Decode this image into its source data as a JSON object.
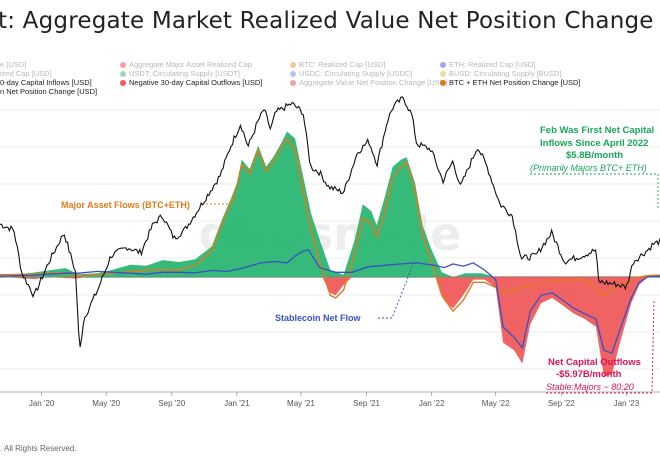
{
  "title": "t: Aggregate Market Realized Value Net Position Change",
  "legend": [
    {
      "label": "e [USD]",
      "color": "#d0d0d0",
      "active": false
    },
    {
      "label": "Aggregate Major Asset Realized Cap",
      "color": "#f3a2a2",
      "active": false
    },
    {
      "label": "BTC: Realized Cap [USD]",
      "color": "#f6c39a",
      "active": false
    },
    {
      "label": "ETH: Realized Cap [USD]",
      "color": "#9fa7e8",
      "active": false
    },
    {
      "label": "ized Cap [USD]",
      "color": "#d0d0d0",
      "active": false
    },
    {
      "label": "USDT: Circulating Supply [USDT]",
      "color": "#9fd7b7",
      "active": false
    },
    {
      "label": "USDC: Circulating Supply [USDC]",
      "color": "#b6c6e6",
      "active": false
    },
    {
      "label": "BUSD: Circulating Supply [BUSD]",
      "color": "#ead9a0",
      "active": false
    },
    {
      "label": "0-day Capital Inflows [USD]",
      "color": "#2bb673",
      "active": true
    },
    {
      "label": "Negative 30-day Capital Outflows [USD]",
      "color": "#f05b5b",
      "active": true
    },
    {
      "label": "Aggregate Value Net Position Change [USD]",
      "color": "#f3a2a2",
      "active": false
    },
    {
      "label": "BTC + ETH Net Position Change [USD]",
      "color": "#e07b1a",
      "active": true
    },
    {
      "label": "n Net Position Change [USD]",
      "color": "#3a4fc7",
      "active": true
    }
  ],
  "annotations": {
    "major_flows": "Major Asset Flows (BTC+ETH)",
    "stablecoin": "Stablecoin Net Flow",
    "inflow_line1": "Feb Was First Net Capital",
    "inflow_line2": "Inflows Since  April 2022",
    "inflow_line3": "$5.8B/month",
    "inflow_line4": "(Primarily Majors BTC+ ETH)",
    "outflow_line1": "Net Capital Outflows",
    "outflow_line2": "-$5.97B/month",
    "outflow_line3": "Stable:Majors ~ 80:20"
  },
  "watermark": "glassnode",
  "footer": ". All Rights Reserved.",
  "colors": {
    "inflow": "#2bb673",
    "outflow": "#f05b5b",
    "majors": "#e07b1a",
    "stable": "#3a4fc7",
    "price": "#111111",
    "inflow_text": "#1aa65a",
    "outflow_text": "#e0105a"
  },
  "chart_data": {
    "type": "area",
    "x_ticks": [
      "Jan '20",
      "May '20",
      "Sep '20",
      "Jan '21",
      "May '21",
      "Sep '21",
      "Jan '22",
      "May '22",
      "Sep '22",
      "Jan '23"
    ],
    "x_range": [
      "2019-10-15",
      "2023-03-05"
    ],
    "net_position_range": [
      -20,
      36
    ],
    "price_range": [
      0,
      100
    ],
    "series": [
      {
        "name": "0-day Capital Inflows [USD]",
        "points": [
          [
            "2019-10-15",
            0
          ],
          [
            "2019-11-20",
            0.6
          ],
          [
            "2019-12-15",
            0.9
          ],
          [
            "2020-01-15",
            1.4
          ],
          [
            "2020-02-15",
            1.9
          ],
          [
            "2020-03-10",
            0.6
          ],
          [
            "2020-04-15",
            0.8
          ],
          [
            "2020-05-15",
            1.6
          ],
          [
            "2020-06-15",
            2.6
          ],
          [
            "2020-07-15",
            2.4
          ],
          [
            "2020-08-15",
            3.6
          ],
          [
            "2020-09-15",
            3.2
          ],
          [
            "2020-10-15",
            3.8
          ],
          [
            "2020-11-15",
            6.5
          ],
          [
            "2020-12-05",
            12.5
          ],
          [
            "2020-12-20",
            16.5
          ],
          [
            "2021-01-01",
            20.0
          ],
          [
            "2021-01-10",
            25.0
          ],
          [
            "2021-01-25",
            23.0
          ],
          [
            "2021-02-10",
            28.0
          ],
          [
            "2021-02-25",
            23.5
          ],
          [
            "2021-03-10",
            25.5
          ],
          [
            "2021-03-25",
            28.5
          ],
          [
            "2021-04-05",
            31.0
          ],
          [
            "2021-04-20",
            29.5
          ],
          [
            "2021-05-05",
            21.5
          ],
          [
            "2021-05-20",
            13.5
          ],
          [
            "2021-06-05",
            8.0
          ],
          [
            "2021-06-25",
            1.5
          ],
          [
            "2021-07-20",
            0.5
          ],
          [
            "2021-08-10",
            8.0
          ],
          [
            "2021-08-25",
            15.5
          ],
          [
            "2021-09-10",
            14.0
          ],
          [
            "2021-09-20",
            11.0
          ],
          [
            "2021-10-05",
            17.0
          ],
          [
            "2021-10-20",
            23.5
          ],
          [
            "2021-11-05",
            25.0
          ],
          [
            "2021-11-15",
            25.5
          ],
          [
            "2021-12-01",
            20.0
          ],
          [
            "2021-12-15",
            11.0
          ],
          [
            "2021-12-31",
            6.0
          ],
          [
            "2022-01-20",
            1.0
          ],
          [
            "2022-02-10",
            0
          ],
          [
            "2022-03-05",
            0.8
          ],
          [
            "2022-04-05",
            0.8
          ],
          [
            "2022-05-01",
            0
          ],
          [
            "2023-01-25",
            0
          ],
          [
            "2023-02-10",
            0.3
          ],
          [
            "2023-03-05",
            0.5
          ]
        ]
      },
      {
        "name": "Negative 30-day Capital Outflows [USD]",
        "points": [
          [
            "2019-10-15",
            0
          ],
          [
            "2019-12-20",
            -0.4
          ],
          [
            "2020-01-10",
            0
          ],
          [
            "2020-03-05",
            -0.3
          ],
          [
            "2020-03-25",
            0
          ],
          [
            "2021-06-10",
            0
          ],
          [
            "2021-06-25",
            -3.0
          ],
          [
            "2021-07-05",
            -3.5
          ],
          [
            "2021-07-20",
            -1.5
          ],
          [
            "2021-08-05",
            0
          ],
          [
            "2022-01-10",
            0
          ],
          [
            "2022-01-25",
            -4.5
          ],
          [
            "2022-02-10",
            -6.0
          ],
          [
            "2022-03-01",
            -3.5
          ],
          [
            "2022-03-20",
            -0.5
          ],
          [
            "2022-04-10",
            -0.5
          ],
          [
            "2022-05-01",
            -2.0
          ],
          [
            "2022-05-15",
            -12.5
          ],
          [
            "2022-06-05",
            -14.0
          ],
          [
            "2022-06-20",
            -16.5
          ],
          [
            "2022-07-05",
            -9.0
          ],
          [
            "2022-07-25",
            -5.0
          ],
          [
            "2022-08-15",
            -4.0
          ],
          [
            "2022-09-05",
            -5.5
          ],
          [
            "2022-09-25",
            -7.0
          ],
          [
            "2022-10-15",
            -8.0
          ],
          [
            "2022-11-05",
            -9.5
          ],
          [
            "2022-11-20",
            -19.0
          ],
          [
            "2022-12-05",
            -18.5
          ],
          [
            "2022-12-20",
            -12.5
          ],
          [
            "2023-01-10",
            -5.0
          ],
          [
            "2023-01-25",
            -1.5
          ],
          [
            "2023-02-10",
            0
          ],
          [
            "2023-03-05",
            0
          ]
        ]
      },
      {
        "name": "BTC + ETH Net Position Change [USD]",
        "points": [
          [
            "2019-10-15",
            0.5
          ],
          [
            "2019-12-15",
            0.6
          ],
          [
            "2020-02-15",
            1.0
          ],
          [
            "2020-03-10",
            0.2
          ],
          [
            "2020-05-15",
            0.8
          ],
          [
            "2020-07-15",
            1.5
          ],
          [
            "2020-09-15",
            1.5
          ],
          [
            "2020-10-15",
            2.5
          ],
          [
            "2020-11-15",
            5.5
          ],
          [
            "2020-12-05",
            11.5
          ],
          [
            "2020-12-20",
            15.5
          ],
          [
            "2021-01-01",
            19.5
          ],
          [
            "2021-01-10",
            24.0
          ],
          [
            "2021-01-25",
            22.0
          ],
          [
            "2021-02-10",
            27.0
          ],
          [
            "2021-02-25",
            22.5
          ],
          [
            "2021-03-10",
            24.5
          ],
          [
            "2021-03-25",
            27.5
          ],
          [
            "2021-04-05",
            29.5
          ],
          [
            "2021-04-20",
            27.0
          ],
          [
            "2021-05-05",
            18.5
          ],
          [
            "2021-05-20",
            10.0
          ],
          [
            "2021-06-05",
            3.0
          ],
          [
            "2021-06-25",
            -3.5
          ],
          [
            "2021-07-05",
            -4.0
          ],
          [
            "2021-07-20",
            -2.5
          ],
          [
            "2021-08-10",
            5.0
          ],
          [
            "2021-08-25",
            12.5
          ],
          [
            "2021-09-10",
            11.5
          ],
          [
            "2021-09-20",
            8.5
          ],
          [
            "2021-10-05",
            13.5
          ],
          [
            "2021-10-20",
            21.0
          ],
          [
            "2021-11-05",
            23.5
          ],
          [
            "2021-11-15",
            24.5
          ],
          [
            "2021-12-01",
            18.5
          ],
          [
            "2021-12-15",
            9.0
          ],
          [
            "2021-12-31",
            3.5
          ],
          [
            "2022-01-20",
            -3.5
          ],
          [
            "2022-02-10",
            -6.5
          ],
          [
            "2022-03-01",
            -4.5
          ],
          [
            "2022-03-20",
            -1.0
          ],
          [
            "2022-04-10",
            -1.0
          ],
          [
            "2022-05-01",
            -2.0
          ],
          [
            "2022-05-15",
            -3.0
          ],
          [
            "2022-06-20",
            -2.0
          ],
          [
            "2022-08-15",
            -0.8
          ],
          [
            "2022-10-15",
            -0.5
          ],
          [
            "2022-11-20",
            -3.5
          ],
          [
            "2022-12-20",
            -1.5
          ],
          [
            "2023-01-25",
            0
          ],
          [
            "2023-02-10",
            0.3
          ],
          [
            "2023-03-05",
            0.4
          ]
        ]
      },
      {
        "name": "n Net Position Change [USD]",
        "points": [
          [
            "2019-10-15",
            0.2
          ],
          [
            "2019-12-15",
            0.4
          ],
          [
            "2020-02-15",
            0.8
          ],
          [
            "2020-03-10",
            0.8
          ],
          [
            "2020-04-15",
            1.2
          ],
          [
            "2020-05-15",
            1.0
          ],
          [
            "2020-06-15",
            0.8
          ],
          [
            "2020-07-15",
            0.6
          ],
          [
            "2020-08-15",
            1.0
          ],
          [
            "2020-09-15",
            1.0
          ],
          [
            "2020-10-15",
            0.9
          ],
          [
            "2020-11-15",
            1.4
          ],
          [
            "2020-12-15",
            1.2
          ],
          [
            "2021-01-15",
            2.0
          ],
          [
            "2021-02-15",
            3.0
          ],
          [
            "2021-03-15",
            3.3
          ],
          [
            "2021-04-05",
            3.0
          ],
          [
            "2021-04-20",
            4.5
          ],
          [
            "2021-05-05",
            5.5
          ],
          [
            "2021-05-15",
            5.8
          ],
          [
            "2021-06-05",
            2.0
          ],
          [
            "2021-07-05",
            1.0
          ],
          [
            "2021-08-05",
            1.0
          ],
          [
            "2021-09-05",
            2.2
          ],
          [
            "2021-10-05",
            2.5
          ],
          [
            "2021-11-05",
            2.8
          ],
          [
            "2021-12-05",
            3.0
          ],
          [
            "2022-01-05",
            2.5
          ],
          [
            "2022-01-25",
            2.0
          ],
          [
            "2022-02-10",
            2.8
          ],
          [
            "2022-03-01",
            2.3
          ],
          [
            "2022-03-20",
            3.0
          ],
          [
            "2022-04-10",
            1.5
          ],
          [
            "2022-05-01",
            -0.5
          ],
          [
            "2022-05-15",
            -9.5
          ],
          [
            "2022-06-05",
            -11.5
          ],
          [
            "2022-06-20",
            -13.5
          ],
          [
            "2022-07-05",
            -6.5
          ],
          [
            "2022-07-25",
            -3.5
          ],
          [
            "2022-08-15",
            -3.0
          ],
          [
            "2022-09-05",
            -4.5
          ],
          [
            "2022-09-25",
            -6.0
          ],
          [
            "2022-10-15",
            -7.0
          ],
          [
            "2022-11-05",
            -8.0
          ],
          [
            "2022-11-20",
            -14.0
          ],
          [
            "2022-12-05",
            -14.5
          ],
          [
            "2022-12-20",
            -10.0
          ],
          [
            "2023-01-10",
            -4.0
          ],
          [
            "2023-01-25",
            -1.0
          ],
          [
            "2023-02-10",
            0
          ],
          [
            "2023-03-05",
            0.2
          ]
        ]
      },
      {
        "name": "e [USD]",
        "points": [
          [
            "2019-10-15",
            55
          ],
          [
            "2019-11-10",
            53
          ],
          [
            "2019-11-25",
            38
          ],
          [
            "2019-12-18",
            30
          ],
          [
            "2020-01-15",
            42
          ],
          [
            "2020-02-12",
            52
          ],
          [
            "2020-03-05",
            38
          ],
          [
            "2020-03-12",
            10
          ],
          [
            "2020-03-20",
            22
          ],
          [
            "2020-04-15",
            32
          ],
          [
            "2020-05-10",
            44
          ],
          [
            "2020-06-10",
            47
          ],
          [
            "2020-07-05",
            45
          ],
          [
            "2020-07-28",
            55
          ],
          [
            "2020-08-15",
            58
          ],
          [
            "2020-09-05",
            50
          ],
          [
            "2020-09-25",
            53
          ],
          [
            "2020-10-20",
            60
          ],
          [
            "2020-11-10",
            66
          ],
          [
            "2020-12-01",
            72
          ],
          [
            "2020-12-20",
            82
          ],
          [
            "2021-01-08",
            90
          ],
          [
            "2021-01-22",
            82
          ],
          [
            "2021-02-10",
            91
          ],
          [
            "2021-02-21",
            95
          ],
          [
            "2021-03-05",
            88
          ],
          [
            "2021-03-15",
            94
          ],
          [
            "2021-04-14",
            97
          ],
          [
            "2021-05-05",
            94
          ],
          [
            "2021-05-19",
            75
          ],
          [
            "2021-06-05",
            73
          ],
          [
            "2021-06-22",
            68
          ],
          [
            "2021-07-20",
            66
          ],
          [
            "2021-08-15",
            80
          ],
          [
            "2021-09-05",
            84
          ],
          [
            "2021-09-21",
            76
          ],
          [
            "2021-10-10",
            91
          ],
          [
            "2021-10-21",
            96
          ],
          [
            "2021-11-09",
            99
          ],
          [
            "2021-11-25",
            93
          ],
          [
            "2021-12-04",
            83
          ],
          [
            "2021-12-31",
            81
          ],
          [
            "2022-01-22",
            70
          ],
          [
            "2022-02-10",
            77
          ],
          [
            "2022-02-24",
            68
          ],
          [
            "2022-03-28",
            82
          ],
          [
            "2022-04-15",
            75
          ],
          [
            "2022-05-09",
            62
          ],
          [
            "2022-06-01",
            58
          ],
          [
            "2022-06-18",
            43
          ],
          [
            "2022-07-15",
            44
          ],
          [
            "2022-08-14",
            52
          ],
          [
            "2022-09-07",
            42
          ],
          [
            "2022-10-10",
            44
          ],
          [
            "2022-11-05",
            46
          ],
          [
            "2022-11-10",
            35
          ],
          [
            "2022-12-15",
            34
          ],
          [
            "2023-01-01",
            33
          ],
          [
            "2023-01-14",
            42
          ],
          [
            "2023-02-10",
            46
          ],
          [
            "2023-02-20",
            48
          ],
          [
            "2023-03-05",
            49
          ]
        ]
      }
    ]
  }
}
